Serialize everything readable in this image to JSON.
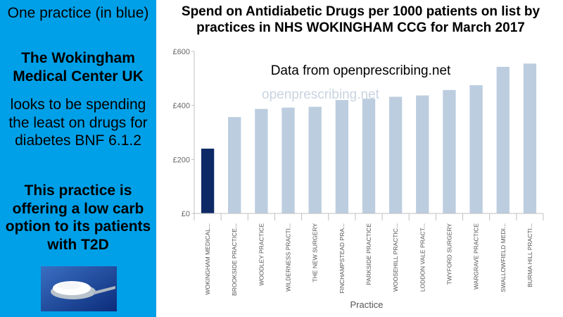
{
  "left_panel": {
    "line1": "One practice (in blue)",
    "line2": "The Wokingham Medical Center UK",
    "line3": "looks to be spending the least on drugs for diabetes BNF 6.1.2",
    "line4": "This practice is offering a low carb option to its patients with T2D",
    "background_color": "#00a0e8",
    "image_icon": "sugar-spoon"
  },
  "watermark": "openprescribing.net",
  "chart_data": {
    "type": "bar",
    "title": "Spend on Antidiabetic Drugs per 1000 patients on list by practices in NHS WOKINGHAM CCG for March 2017",
    "subtitle": "Data from openprescribing.net",
    "xlabel": "Practice",
    "ylabel": "",
    "ylim": [
      0,
      600
    ],
    "yticks": [
      0,
      200,
      400,
      600
    ],
    "ytick_labels": [
      "£0",
      "£200",
      "£400",
      "£600"
    ],
    "categories": [
      "WOKINGHAM MEDICAL...",
      "BROOKSIDE PRACTICE...",
      "WOODLEY PRACTICE",
      "WILDERNESS PRACTI...",
      "THE NEW SURGERY",
      "FINCHAMPSTEAD PRA...",
      "PARKSIDE PRACTICE",
      "WOOSEHILL PRACTIC...",
      "LODDON VALE PRACT...",
      "TWYFORD SURGERY",
      "WARGRAVE PRACTICE",
      "SWALLOWFIELD MEDI...",
      "BURMA HILL PRACTI..."
    ],
    "values": [
      240,
      357,
      387,
      392,
      395,
      420,
      425,
      432,
      437,
      457,
      475,
      543,
      555
    ],
    "highlight_index": 0,
    "bar_color": "#bccddf",
    "highlight_color": "#0d2a66",
    "grid": false
  }
}
